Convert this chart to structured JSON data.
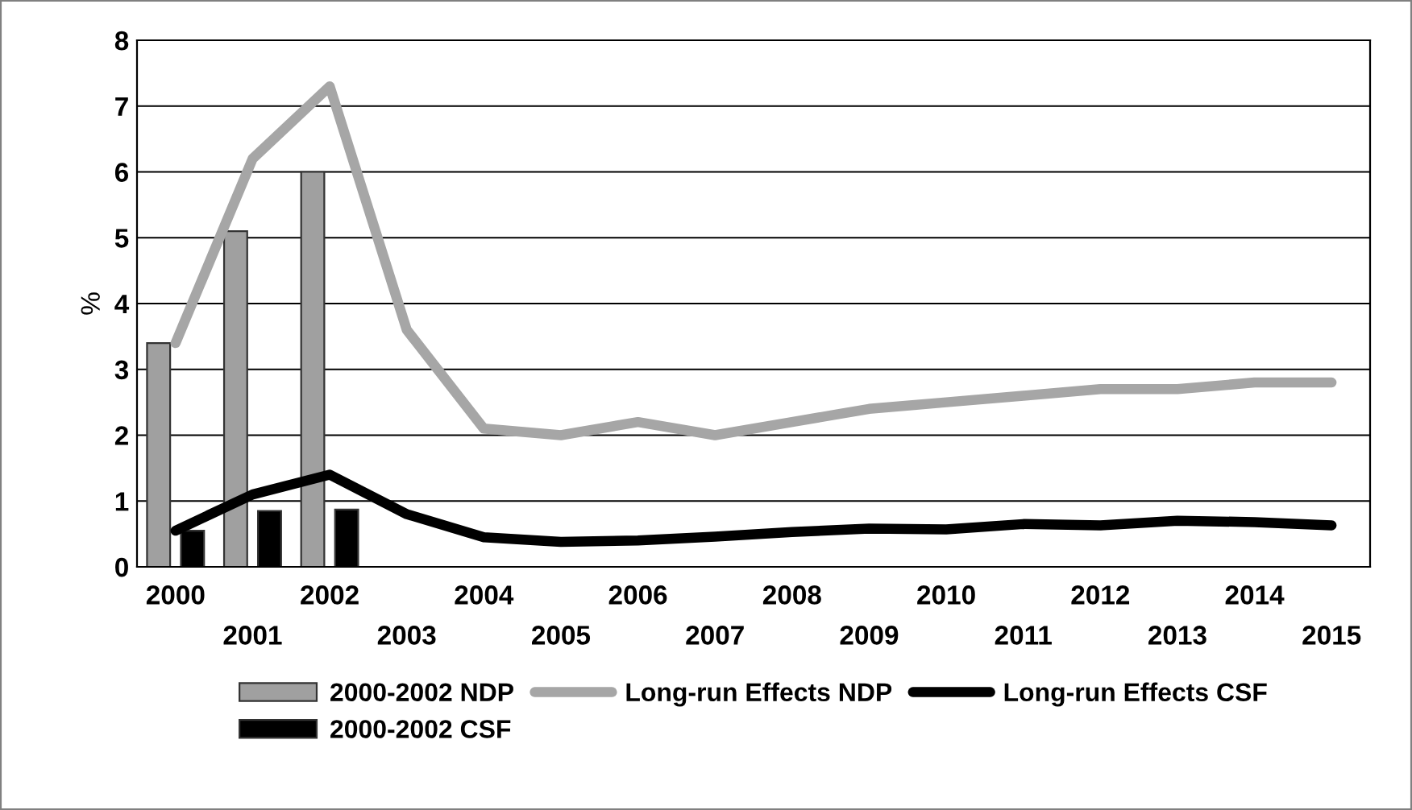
{
  "chart_data": {
    "type": "bar",
    "ylabel": "%",
    "categories": [
      "2000",
      "2001",
      "2002",
      "2003",
      "2004",
      "2005",
      "2006",
      "2007",
      "2008",
      "2009",
      "2010",
      "2011",
      "2012",
      "2013",
      "2014",
      "2015"
    ],
    "series": [
      {
        "name": "2000-2002 NDP",
        "color": "#a0a0a0",
        "values": [
          3.4,
          5.1,
          6.0,
          null,
          null,
          null,
          null,
          null,
          null,
          null,
          null,
          null,
          null,
          null,
          null,
          null
        ]
      },
      {
        "name": "Long-run Effects NDP",
        "type": "line",
        "color": "#a6a6a6",
        "values": [
          3.4,
          6.2,
          7.3,
          3.6,
          2.1,
          2.0,
          2.2,
          2.0,
          2.2,
          2.4,
          2.5,
          2.6,
          2.7,
          2.7,
          2.8,
          2.8
        ]
      },
      {
        "name": "Long-run Effects CSF",
        "type": "line",
        "color": "#000000",
        "values": [
          0.55,
          1.1,
          1.4,
          0.8,
          0.45,
          0.38,
          0.4,
          0.46,
          0.53,
          0.58,
          0.57,
          0.65,
          0.63,
          0.7,
          0.68,
          0.63
        ]
      },
      {
        "name": "2000-2002 CSF",
        "color": "#000000",
        "values": [
          0.55,
          0.85,
          0.87,
          null,
          null,
          null,
          null,
          null,
          null,
          null,
          null,
          null,
          null,
          null,
          null,
          null
        ]
      }
    ],
    "ylim": [
      0,
      8
    ],
    "yticks": [
      0,
      1,
      2,
      3,
      4,
      5,
      6,
      7,
      8
    ],
    "grid": "y",
    "legend": "bottom"
  }
}
